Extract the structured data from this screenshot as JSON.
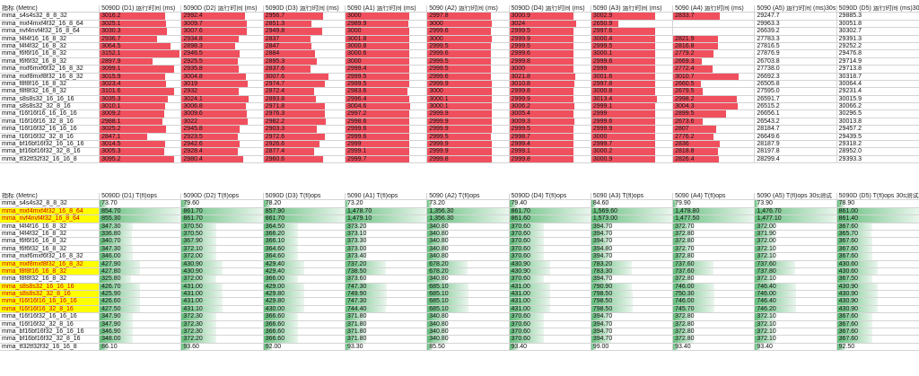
{
  "colors": {
    "red_bar": "#f0505e",
    "green_bar": "#63be7b",
    "highlight_bg": "#ffff00",
    "highlight_text": "#d00000"
  },
  "table1": {
    "headers": [
      "指标 (Metric)",
      "5090D (D1) 运行时间 (ms)",
      "5090D (D2) 运行时间 (ms)",
      "5090D (D3) 运行时间 (ms)",
      "5090 (A1) 运行时间 (ms)",
      "5090 (A2) 运行时间 (ms)",
      "5090D (D4) 运行时间 (ms)",
      "5090 (A3) 运行时间 (ms)",
      "5090 (A4) 运行时间 (ms)",
      "5090 (A5) 运行时间 (ms)30s测试",
      "5090D (D5) 运行时间 (ms)30s测试"
    ],
    "rows": [
      {
        "metric": "mma_s4s4s32_8_8_32",
        "values": [
          "3016.2",
          "2992.4",
          "2956.7",
          "3000",
          "2997.8",
          "3000.9",
          "3002.9",
          "2833.7",
          "29247.7",
          "29885.3"
        ]
      },
      {
        "metric": "mma_mxf4mxf4f32_16_8_64",
        "values": [
          "3025.1",
          "3009.7",
          "2851.3",
          "2989.9",
          "3000",
          "3024",
          "2650.9",
          "",
          "29963.3",
          "30051.8"
        ]
      },
      {
        "metric": "mma_nvf4nvf4f32_16_8_64",
        "values": [
          "3030.3",
          "3007.6",
          "2949.8",
          "3000",
          "2999.6",
          "2999.5",
          "2997.6",
          "",
          "26639.2",
          "30302.7"
        ]
      },
      {
        "metric": "mma_f4f4f16_16_8_32",
        "values": [
          "2936.7",
          "2934.8",
          "2837",
          "3001.8",
          "3000",
          "2999.9",
          "3000.4",
          "2821.9",
          "27783.3",
          "29391.3"
        ]
      },
      {
        "metric": "mma_f4f4f32_16_8_32",
        "values": [
          "3064.5",
          "2898.3",
          "2847",
          "3000.8",
          "2999.5",
          "2999.5",
          "2999.5",
          "2816.8",
          "27816.5",
          "29252.2"
        ]
      },
      {
        "metric": "mma_f6f6f16_16_8_32",
        "values": [
          "3152.1",
          "2946.5",
          "2884",
          "3000.6",
          "2999.6",
          "2999.6",
          "3000.1",
          "2779.2",
          "27876.9",
          "29476.8"
        ]
      },
      {
        "metric": "mma_f6f6f32_16_8_32",
        "values": [
          "2897.9",
          "2925.5",
          "2895.3",
          "3000",
          "2999.5",
          "2999.8",
          "2999.6",
          "2669.3",
          "26703.8",
          "29714.9"
        ]
      },
      {
        "metric": "mma_mxf6mxf6f32_16_8_32",
        "values": [
          "3099.1",
          "2935.8",
          "2837.6",
          "2999.4",
          "2999.5",
          "3000",
          "2999",
          "2772.4",
          "27738.0",
          "29713.8"
        ]
      },
      {
        "metric": "mma_mxf8mxf8f32_16_8_32",
        "values": [
          "3015.9",
          "3004.8",
          "3007.6",
          "2999.5",
          "2999.6",
          "3021.8",
          "3001.6",
          "3010.7",
          "26692.3",
          "30318.7"
        ]
      },
      {
        "metric": "mma_f8f8f16_16_8_32",
        "values": [
          "3023.4",
          "3019",
          "2974.7",
          "2999.5",
          "2999.9",
          "3010.8",
          "2997.8",
          "2660.5",
          "26505.8",
          "30064.4"
        ]
      },
      {
        "metric": "mma_f8f8f32_16_8_32",
        "values": [
          "3101.6",
          "2932",
          "2872.4",
          "2983.6",
          "3000",
          "2999.8",
          "3000.8",
          "2679.5",
          "27595.0",
          "29231.4"
        ]
      },
      {
        "metric": "mma_s8s8s32_16_16_16",
        "values": [
          "3035.3",
          "3024.1",
          "2893.8",
          "2996.4",
          "3000.1",
          "2999.9",
          "3013.4",
          "2998.2",
          "26591.7",
          "30015.9"
        ]
      },
      {
        "metric": "mma_s8s8s32_32_8_16",
        "values": [
          "3010.1",
          "3006.8",
          "2971.8",
          "3004.6",
          "3000.1",
          "3006.2",
          "2999.1",
          "3004.3",
          "26515.2",
          "30066.2"
        ]
      },
      {
        "metric": "mma_f16f16f16_16_16_16",
        "values": [
          "3009.2",
          "3009.6",
          "2976.3",
          "2997.2",
          "2999.9",
          "3005.4",
          "2999",
          "2899.5",
          "26656.1",
          "30296.5"
        ]
      },
      {
        "metric": "mma_f16f16f16_32_8_16",
        "values": [
          "2988.1",
          "3022",
          "2982.2",
          "2998.6",
          "2999.9",
          "3009.3",
          "2999.6",
          "2673.6",
          "26543.2",
          "30013.8"
        ]
      },
      {
        "metric": "mma_f16f16f32_16_16_16",
        "values": [
          "3025.2",
          "2945.8",
          "2903.3",
          "2999.6",
          "2999.9",
          "2999.5",
          "2999.9",
          "2807",
          "28184.7",
          "29457.2"
        ]
      },
      {
        "metric": "mma_f16f16f32_32_8_16",
        "values": [
          "2847.1",
          "2923.5",
          "2972.6",
          "2999.6",
          "2999.5",
          "2998.7",
          "3000",
          "2776.2",
          "26649.6",
          "29439.5"
        ]
      },
      {
        "metric": "mma_bf16bf16f32_16_16_16",
        "values": [
          "3014.5",
          "2942.6",
          "2926.6",
          "2999",
          "2999.9",
          "2999.4",
          "2999.7",
          "2836",
          "28187.9",
          "29318.2"
        ]
      },
      {
        "metric": "mma_bf16bf16f32_32_8_16",
        "values": [
          "3005.3",
          "2928.4",
          "2877.4",
          "2999.1",
          "2999.9",
          "2999.1",
          "3000.2",
          "2818.8",
          "28197.8",
          "28952.0"
        ]
      },
      {
        "metric": "mma_tf32tf32f32_16_16_8",
        "values": [
          "3095.2",
          "2980.4",
          "2960.6",
          "2999.7",
          "2999.8",
          "2999.8",
          "3000.9",
          "2826.4",
          "28299.4",
          "29393.3"
        ]
      }
    ]
  },
  "table2": {
    "headers": [
      "指标 (Metric)",
      "5090D (D1) T(fl)ops",
      "5090D (D2) T(fl)ops",
      "5090D (D3) T(fl)ops",
      "5090 (A1) T(fl)ops",
      "5090 (A2) T(fl)ops",
      "5090D (D4) T(fl)ops",
      "5090 (A3) T(fl)ops",
      "5090 (A4) T(fl)ops",
      "5090 (A5) T(fl)ops 30s测试",
      "5090D (D5) T(fl)ops 30s测试"
    ],
    "rows": [
      {
        "metric": "mma_s4s4s32_8_8_32",
        "hl": false,
        "values": [
          "73.70",
          "79.60",
          "78.20",
          "73.20",
          "73.20",
          "79.40",
          "84.60",
          "79.90",
          "73.90",
          "78.90"
        ]
      },
      {
        "metric": "mma_mxf4mxf4f32_16_8_64",
        "hl": true,
        "values": [
          "854.70",
          "861.70",
          "857.90",
          "1,478.70",
          "1,356.30",
          "861.70",
          "1,569.60",
          "1,478.80",
          "1,476.70",
          "861.00"
        ]
      },
      {
        "metric": "mma_nvf4nvf4f32_16_8_64",
        "hl": true,
        "values": [
          "855.30",
          "861.70",
          "861.70",
          "1,479.10",
          "1,356.30",
          "861.60",
          "1,573.00",
          "1,477.50",
          "1,477.10",
          "861.40"
        ]
      },
      {
        "metric": "mma_f4f4f16_16_8_32",
        "hl": false,
        "values": [
          "347.30",
          "370.50",
          "364.50",
          "373.20",
          "340.80",
          "370.60",
          "394.70",
          "372.70",
          "372.00",
          "367.60"
        ]
      },
      {
        "metric": "mma_f4f4f32_16_8_32",
        "hl": false,
        "values": [
          "336.80",
          "370.50",
          "366.20",
          "373.10",
          "340.80",
          "370.60",
          "394.70",
          "372.80",
          "371.90",
          "365.70"
        ]
      },
      {
        "metric": "mma_f6f6f16_16_8_32",
        "hl": false,
        "values": [
          "340.70",
          "367.90",
          "366.10",
          "373.30",
          "340.80",
          "370.60",
          "394.70",
          "372.80",
          "372.00",
          "367.60"
        ]
      },
      {
        "metric": "mma_f6f6f32_16_8_32",
        "hl": false,
        "values": [
          "347.30",
          "372.10",
          "364.60",
          "373.00",
          "340.80",
          "370.60",
          "394.80",
          "372.70",
          "372.10",
          "367.60"
        ]
      },
      {
        "metric": "mma_mxf6mxf6f32_16_8_32",
        "hl": false,
        "values": [
          "346.00",
          "372.00",
          "364.60",
          "373.40",
          "340.80",
          "370.60",
          "394.70",
          "372.80",
          "372.10",
          "367.60"
        ]
      },
      {
        "metric": "mma_mxf8mxf8f32_16_8_32",
        "hl": true,
        "values": [
          "427.90",
          "430.90",
          "429.40",
          "737.20",
          "678.20",
          "430.90",
          "783.20",
          "737.60",
          "737.60",
          "430.60"
        ]
      },
      {
        "metric": "mma_f8f8f16_16_8_32",
        "hl": true,
        "values": [
          "427.80",
          "430.90",
          "429.40",
          "738.50",
          "678.20",
          "430.90",
          "783.30",
          "737.60",
          "737.80",
          "430.60"
        ]
      },
      {
        "metric": "mma_f8f8f32_16_8_32",
        "hl": false,
        "values": [
          "325.80",
          "372.00",
          "366.00",
          "373.60",
          "340.80",
          "370.60",
          "394.70",
          "372.80",
          "372.10",
          "367.50"
        ]
      },
      {
        "metric": "mma_s8s8s32_16_16_16",
        "hl": true,
        "values": [
          "426.70",
          "431.00",
          "429.00",
          "747.30",
          "685.10",
          "431.00",
          "790.90",
          "746.00",
          "746.40",
          "430.90"
        ]
      },
      {
        "metric": "mma_s8s8s32_32_8_16",
        "hl": true,
        "values": [
          "425.90",
          "431.00",
          "429.80",
          "749.90",
          "685.10",
          "431.00",
          "798.50",
          "750.30",
          "746.00",
          "430.90"
        ]
      },
      {
        "metric": "mma_f16f16f16_16_16_16",
        "hl": true,
        "values": [
          "426.60",
          "431.00",
          "429.80",
          "747.30",
          "685.10",
          "431.00",
          "798.50",
          "746.00",
          "746.40",
          "430.90"
        ]
      },
      {
        "metric": "mma_f16f16f16_32_8_16",
        "hl": true,
        "values": [
          "427.50",
          "431.10",
          "430.00",
          "744.40",
          "685.10",
          "431.00",
          "798.50",
          "745.70",
          "746.20",
          "430.90"
        ]
      },
      {
        "metric": "mma_f16f16f32_16_16_16",
        "hl": false,
        "values": [
          "347.90",
          "372.30",
          "366.60",
          "371.80",
          "340.80",
          "370.60",
          "394.70",
          "372.80",
          "372.10",
          "367.60"
        ]
      },
      {
        "metric": "mma_f16f16f32_32_8_16",
        "hl": false,
        "values": [
          "347.90",
          "372.30",
          "366.60",
          "371.80",
          "340.80",
          "370.60",
          "394.70",
          "372.80",
          "372.10",
          "367.60"
        ]
      },
      {
        "metric": "mma_bf16bf16f32_16_16_16",
        "hl": false,
        "values": [
          "346.90",
          "372.30",
          "366.60",
          "371.80",
          "340.80",
          "370.60",
          "394.70",
          "372.80",
          "372.10",
          "367.60"
        ]
      },
      {
        "metric": "mma_bf16bf16f32_32_8_16",
        "hl": false,
        "values": [
          "348.00",
          "372.20",
          "366.60",
          "371.80",
          "340.80",
          "370.60",
          "394.70",
          "372.80",
          "372.10",
          "367.60"
        ]
      },
      {
        "metric": "mma_tf32tf32f32_16_16_8",
        "hl": false,
        "values": [
          "86.10",
          "93.60",
          "92.00",
          "93.30",
          "85.50",
          "93.40",
          "99.00",
          "93.40",
          "93.40",
          "92.50"
        ]
      }
    ]
  }
}
